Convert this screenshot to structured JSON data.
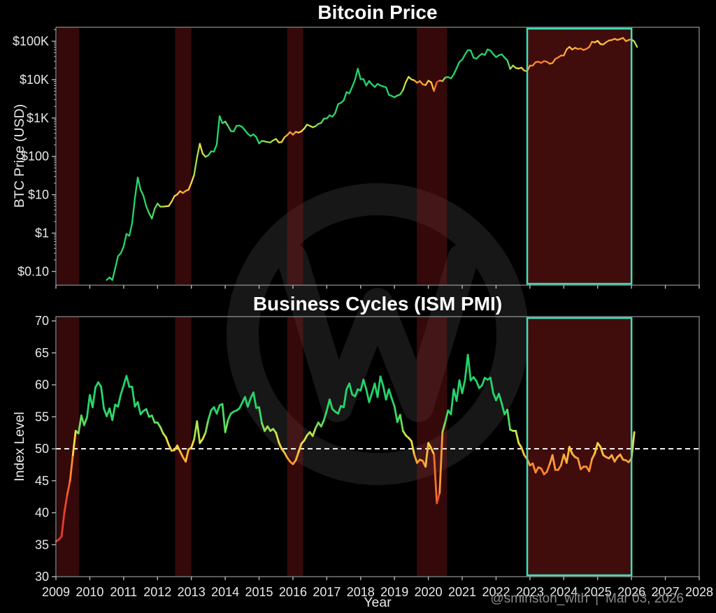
{
  "page": {
    "title_top": "Bitcoin Price",
    "title_bottom": "Business Cycles (ISM PMI)",
    "ylabel_top": "BTC Price (USD)",
    "ylabel_bottom": "Index Level",
    "xlabel": "Year",
    "signature_handle": "@sminston_with",
    "signature_separator": "|",
    "signature_date": "Mar 03, 2026"
  },
  "colors": {
    "background": "#000000",
    "spine": "#b5b5b5",
    "tick_label": "#e9e9e9",
    "title": "#ffffff",
    "signature": "#8a8a8a",
    "watermark": "#171717",
    "recession_band": "rgba(140,24,24,0.38)",
    "highlight_fill": "rgba(152,28,28,0.42)",
    "highlight_border": "#3ce0ba",
    "dashed_line": "#ffffff",
    "colormap": [
      [
        35,
        "#dc3434"
      ],
      [
        42,
        "#e84a2e"
      ],
      [
        45,
        "#f26c2d"
      ],
      [
        47,
        "#fa8a30"
      ],
      [
        48.5,
        "#fda838"
      ],
      [
        49.8,
        "#ffcd3e"
      ],
      [
        51,
        "#f8de46"
      ],
      [
        52.5,
        "#bae24b"
      ],
      [
        54,
        "#60dc5a"
      ],
      [
        56,
        "#28d66a"
      ],
      [
        70,
        "#16d068"
      ]
    ]
  },
  "x_axis": {
    "label": "Year",
    "ticks": [
      2009,
      2010,
      2011,
      2012,
      2013,
      2014,
      2015,
      2016,
      2017,
      2018,
      2019,
      2020,
      2021,
      2022,
      2023,
      2024,
      2025,
      2026,
      2027,
      2028
    ],
    "xlim": [
      2009,
      2028
    ]
  },
  "annotations": {
    "recession_bands": [
      [
        2009.03,
        2009.68
      ],
      [
        2012.52,
        2013.0
      ],
      [
        2015.83,
        2016.3
      ],
      [
        2019.66,
        2020.55
      ]
    ],
    "highlight_box": [
      2022.92,
      2026.0
    ]
  },
  "chart_data": [
    {
      "type": "line",
      "title": "Bitcoin Price",
      "ylabel": "BTC Price (USD)",
      "xlabel": "",
      "yscale": "log",
      "ylim": [
        0.044,
        230000
      ],
      "grid": false,
      "color_encoding": "line colored by ISM PMI level at same date (red low, green high)",
      "yticks": [
        {
          "v": 100000,
          "label": "$100K"
        },
        {
          "v": 10000,
          "label": "$10K"
        },
        {
          "v": 1000,
          "label": "$1K"
        },
        {
          "v": 100,
          "label": "$100"
        },
        {
          "v": 10,
          "label": "$10"
        },
        {
          "v": 1,
          "label": "$1"
        },
        {
          "v": 0.1,
          "label": "$0.10"
        }
      ],
      "series": [
        {
          "name": "BTC price (USD), monthly",
          "x_start": 2010.5,
          "x_step": 0.083333,
          "values": [
            0.06,
            0.07,
            0.06,
            0.12,
            0.25,
            0.3,
            0.45,
            0.95,
            0.85,
            1.8,
            8.2,
            28,
            13.5,
            9.5,
            5.0,
            3.3,
            2.4,
            4.3,
            5.9,
            4.9,
            4.9,
            5.0,
            5.1,
            6.6,
            9.2,
            10.2,
            12.4,
            11.1,
            12.6,
            13.5,
            20.4,
            33.4,
            93,
            213,
            118,
            97,
            106,
            135,
            133,
            204,
            1120,
            732,
            805,
            620,
            455,
            445,
            625,
            635,
            585,
            480,
            388,
            338,
            375,
            318,
            218,
            253,
            245,
            236,
            230,
            262,
            284,
            230,
            236,
            313,
            360,
            430,
            368,
            437,
            416,
            448,
            531,
            672,
            624,
            573,
            609,
            700,
            743,
            963,
            970,
            1180,
            1080,
            1350,
            2290,
            2480,
            2880,
            4730,
            4360,
            6470,
            9900,
            19200,
            10200,
            10300,
            7000,
            9240,
            7500,
            6400,
            7750,
            7030,
            6630,
            6300,
            4020,
            3740,
            3460,
            3850,
            4100,
            5320,
            8560,
            11800,
            10090,
            9590,
            8290,
            9150,
            7550,
            7190,
            9350,
            8550,
            5030,
            8630,
            9450,
            9140,
            11350,
            11650,
            10780,
            13800,
            19700,
            29000,
            33100,
            45200,
            58800,
            57750,
            37300,
            35000,
            41460,
            47150,
            43800,
            61320,
            57000,
            46200,
            38480,
            43190,
            45540,
            37650,
            31790,
            19000,
            23300,
            20050,
            19430,
            20490,
            17160,
            16550,
            23130,
            23140,
            28480,
            29250,
            27220,
            30470,
            29230,
            25940,
            26960,
            34650,
            37710,
            42270,
            42580,
            61200,
            71330,
            60640,
            67490,
            62680,
            64620,
            58970,
            63330,
            70220,
            96450,
            93430,
            102400,
            84350,
            82550,
            94200,
            104600,
            107200,
            115800,
            108200,
            114100,
            122000,
            100500,
            108000,
            112000,
            98000,
            71000
          ]
        }
      ]
    },
    {
      "type": "line",
      "title": "Business Cycles (ISM PMI)",
      "ylabel": "Index Level",
      "xlabel": "Year",
      "ylim": [
        30,
        70.7
      ],
      "grid": false,
      "reference_line": 50,
      "yticks": [
        30,
        35,
        40,
        45,
        50,
        55,
        60,
        65,
        70
      ],
      "series": [
        {
          "name": "ISM Manufacturing PMI, monthly",
          "x_start": 2009.0,
          "x_step": 0.083333,
          "values": [
            35.5,
            35.8,
            36.3,
            40.1,
            42.8,
            45.0,
            49.0,
            52.8,
            52.4,
            55.2,
            53.7,
            54.9,
            58.4,
            56.5,
            59.6,
            60.4,
            59.7,
            56.3,
            55.1,
            56.3,
            54.5,
            56.9,
            56.6,
            58.5,
            59.9,
            61.4,
            59.7,
            59.7,
            56.6,
            57.3,
            55.4,
            55.9,
            56.2,
            55.0,
            55.2,
            54.1,
            54.1,
            53.4,
            52.4,
            51.8,
            50.6,
            49.7,
            49.8,
            50.5,
            49.6,
            48.7,
            48.0,
            49.9,
            50.2,
            51.5,
            54.3,
            50.9,
            51.5,
            52.5,
            54.5,
            56.0,
            56.5,
            55.5,
            56.8,
            57.0,
            52.6,
            54.5,
            55.5,
            55.8,
            56.0,
            56.3,
            57.2,
            58.1,
            56.6,
            57.9,
            58.8,
            56.4,
            56.5,
            54.0,
            52.8,
            53.5,
            52.8,
            53.1,
            52.5,
            51.0,
            50.0,
            49.4,
            48.6,
            48.0,
            47.6,
            48.2,
            49.5,
            50.8,
            51.3,
            52.1,
            52.6,
            52.0,
            53.2,
            54.1,
            53.5,
            54.5,
            56.0,
            57.7,
            56.2,
            55.8,
            55.5,
            56.7,
            56.5,
            59.3,
            60.2,
            58.5,
            58.2,
            59.3,
            59.1,
            60.8,
            59.3,
            57.3,
            58.7,
            60.2,
            58.1,
            61.3,
            59.8,
            57.7,
            59.3,
            57.9,
            56.6,
            54.2,
            55.3,
            52.8,
            52.1,
            51.7,
            51.2,
            49.1,
            47.8,
            48.3,
            48.1,
            47.2,
            50.9,
            50.1,
            49.1,
            41.5,
            43.1,
            52.6,
            54.2,
            56.0,
            55.4,
            59.3,
            57.5,
            60.7,
            58.7,
            60.8,
            64.7,
            60.7,
            61.2,
            60.6,
            59.5,
            59.9,
            61.1,
            60.8,
            61.1,
            58.7,
            57.6,
            58.6,
            57.1,
            55.4,
            56.1,
            53.0,
            52.8,
            52.8,
            50.9,
            50.2,
            49.0,
            48.4,
            47.4,
            47.7,
            46.3,
            47.1,
            46.9,
            46.0,
            46.4,
            47.6,
            49.0,
            46.7,
            46.7,
            47.4,
            49.1,
            47.8,
            50.3,
            49.2,
            48.7,
            48.5,
            46.8,
            47.2,
            47.2,
            46.5,
            48.4,
            49.3,
            50.9,
            50.3,
            49.0,
            48.7,
            48.5,
            49.0,
            48.0,
            48.7,
            49.1,
            48.3,
            48.2,
            47.9,
            48.5,
            52.6
          ]
        }
      ]
    }
  ]
}
